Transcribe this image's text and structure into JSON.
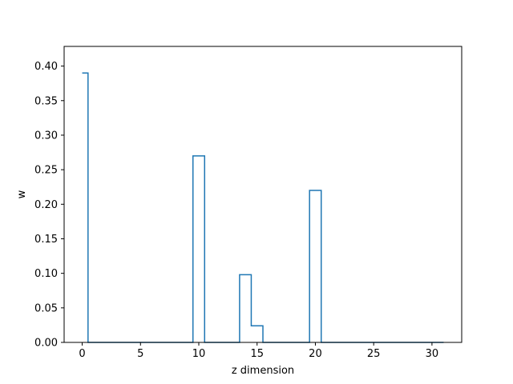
{
  "chart_data": {
    "type": "line",
    "drawstyle": "steps-mid",
    "title": "",
    "xlabel": "z dimension",
    "ylabel": "w",
    "xlim": [
      -1.55,
      32.55
    ],
    "ylim": [
      0,
      0.4285
    ],
    "grid": false,
    "x_ticks": [
      0,
      5,
      10,
      15,
      20,
      25,
      30
    ],
    "y_ticks": [
      0.0,
      0.05,
      0.1,
      0.15,
      0.2,
      0.25,
      0.3,
      0.35,
      0.4
    ],
    "x_tick_labels": [
      "0",
      "5",
      "10",
      "15",
      "20",
      "25",
      "30"
    ],
    "y_tick_labels": [
      "0.00",
      "0.05",
      "0.10",
      "0.15",
      "0.20",
      "0.25",
      "0.30",
      "0.35",
      "0.40"
    ],
    "color": "#1f77b4",
    "series": [
      {
        "x": [
          0,
          1,
          2,
          3,
          4,
          5,
          6,
          7,
          8,
          9,
          10,
          11,
          12,
          13,
          14,
          15,
          16,
          17,
          18,
          19,
          20,
          21,
          22,
          23,
          24,
          25,
          26,
          27,
          28,
          29,
          30,
          31
        ],
        "y": [
          0.39,
          0,
          0,
          0,
          0,
          0,
          0,
          0,
          0,
          0,
          0.27,
          0,
          0,
          0,
          0.098,
          0.024,
          0,
          0,
          0,
          0,
          0.22,
          0,
          0,
          0,
          0,
          0,
          0,
          0,
          0,
          0,
          0,
          0
        ]
      }
    ]
  }
}
